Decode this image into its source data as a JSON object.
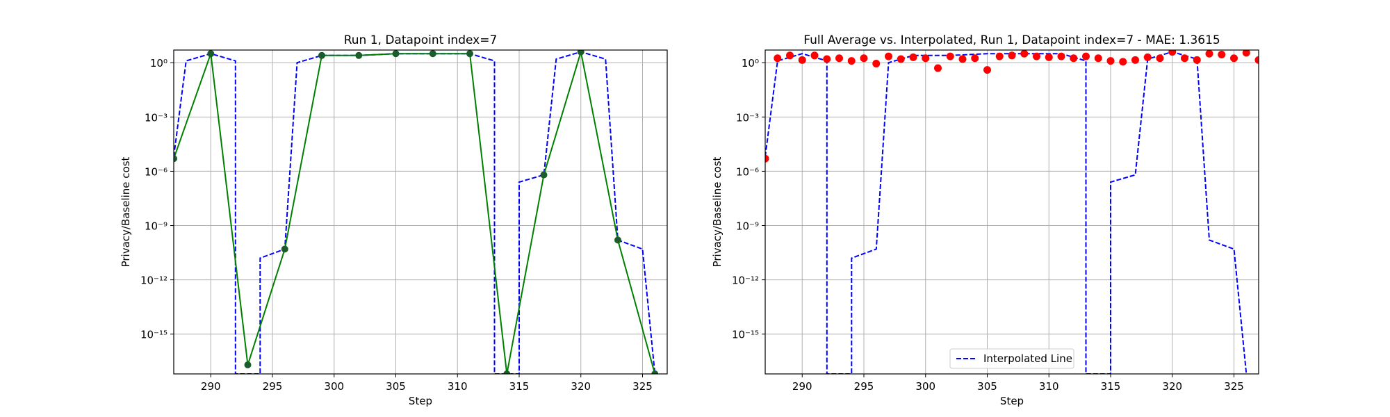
{
  "chart_data": [
    {
      "type": "line",
      "title": "Run 1, Datapoint index=7",
      "xlabel": "Step",
      "ylabel": "Privacy/Baseline cost",
      "yscale": "log",
      "xlim": [
        287,
        327
      ],
      "ylim_log10": [
        -17.2,
        0.7
      ],
      "xticks": [
        290,
        295,
        300,
        305,
        310,
        315,
        320,
        325
      ],
      "yticks_log10": [
        0,
        -3,
        -6,
        -9,
        -12,
        -15
      ],
      "grid": true,
      "series": [
        {
          "style": "dashed",
          "color": "#0000ff",
          "x": [
            287,
            288,
            290,
            292,
            292,
            294,
            294,
            296,
            297,
            299,
            302,
            305,
            308,
            311,
            313,
            313,
            315,
            315,
            317,
            318,
            320,
            322,
            323,
            325,
            326,
            326
          ],
          "log10_y": [
            -5.2,
            0.1,
            0.5,
            0.1,
            -17.2,
            -17.2,
            -10.8,
            -10.3,
            0.0,
            0.4,
            0.4,
            0.5,
            0.5,
            0.5,
            0.1,
            -17.2,
            -17.2,
            -6.6,
            -6.2,
            0.2,
            0.6,
            0.2,
            -9.8,
            -10.3,
            -17.2,
            -17.2
          ]
        },
        {
          "style": "solid-markers",
          "color": "#008000",
          "marker_color": "#1a5c2a",
          "x": [
            287,
            290,
            293,
            296,
            299,
            302,
            305,
            308,
            311,
            314,
            317,
            320,
            323,
            326
          ],
          "log10_y": [
            -5.3,
            0.5,
            -16.7,
            -10.3,
            0.4,
            0.4,
            0.5,
            0.5,
            0.5,
            -17.2,
            -6.2,
            0.6,
            -9.8,
            -17.2
          ]
        }
      ]
    },
    {
      "type": "line",
      "title": "Full Average vs. Interpolated, Run 1, Datapoint index=7 - MAE: 1.3615",
      "xlabel": "Step",
      "ylabel": "Privacy/Baseline cost",
      "yscale": "log",
      "xlim": [
        287,
        327
      ],
      "ylim_log10": [
        -17.2,
        0.7
      ],
      "xticks": [
        290,
        295,
        300,
        305,
        310,
        315,
        320,
        325
      ],
      "yticks_log10": [
        0,
        -3,
        -6,
        -9,
        -12,
        -15
      ],
      "grid": true,
      "legend": {
        "position": "bottom-center",
        "entries": [
          "Interpolated Line"
        ]
      },
      "series": [
        {
          "name": "Interpolated Line",
          "style": "dashed",
          "color": "#0000ff",
          "x": [
            287,
            288,
            290,
            292,
            292,
            294,
            294,
            296,
            297,
            299,
            302,
            305,
            308,
            311,
            313,
            313,
            315,
            315,
            317,
            318,
            320,
            322,
            323,
            325,
            326
          ],
          "log10_y": [
            -5.2,
            0.1,
            0.5,
            0.1,
            -17.2,
            -17.2,
            -10.8,
            -10.3,
            0.0,
            0.4,
            0.4,
            0.5,
            0.5,
            0.5,
            0.1,
            -17.2,
            -17.2,
            -6.6,
            -6.2,
            0.2,
            0.6,
            0.2,
            -9.8,
            -10.3,
            -17.2
          ]
        },
        {
          "style": "scatter",
          "color": "#ff0000",
          "x": [
            287,
            288,
            289,
            290,
            291,
            292,
            293,
            294,
            295,
            296,
            297,
            298,
            299,
            300,
            301,
            302,
            303,
            304,
            305,
            306,
            307,
            308,
            309,
            310,
            311,
            312,
            313,
            314,
            315,
            316,
            317,
            318,
            319,
            320,
            321,
            322,
            323,
            324,
            325,
            326,
            327
          ],
          "log10_y": [
            -5.3,
            0.25,
            0.4,
            0.15,
            0.4,
            0.2,
            0.25,
            0.1,
            0.25,
            -0.05,
            0.35,
            0.2,
            0.3,
            0.25,
            -0.3,
            0.35,
            0.2,
            0.25,
            -0.4,
            0.35,
            0.4,
            0.5,
            0.35,
            0.3,
            0.35,
            0.25,
            0.35,
            0.25,
            0.1,
            0.05,
            0.15,
            0.3,
            0.25,
            0.6,
            0.25,
            0.15,
            0.5,
            0.45,
            0.25,
            0.55,
            0.15
          ]
        }
      ]
    }
  ]
}
